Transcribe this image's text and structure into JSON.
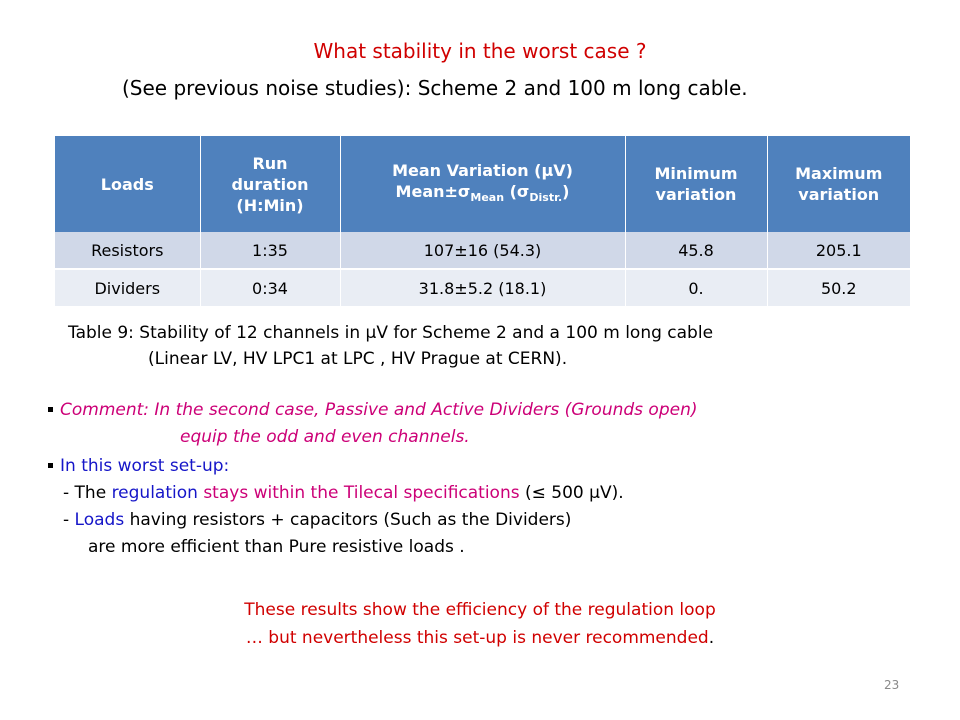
{
  "title": {
    "line1": "What stability in the worst case ?",
    "line2": "(See previous noise studies): Scheme 2 and 100 m long cable."
  },
  "table": {
    "headers": {
      "loads": "Loads",
      "run_duration_1": "Run",
      "run_duration_2": "duration",
      "run_duration_3": "(H:Min)",
      "mean_variation_1": "Mean Variation (µV)",
      "mean_variation_2a": "Mean±σ",
      "mean_variation_2b": "Mean",
      "mean_variation_2c": " (σ",
      "mean_variation_2d": "Distr.",
      "mean_variation_2e": ")",
      "minimum_1": "Minimum",
      "minimum_2": "variation",
      "maximum_1": "Maximum",
      "maximum_2": "variation"
    },
    "rows": [
      {
        "loads": "Resistors",
        "duration": "1:35",
        "mean": "107±16  (54.3)",
        "min": "45.8",
        "max": "205.1"
      },
      {
        "loads": "Dividers",
        "duration": "0:34",
        "mean": "31.8±5.2  (18.1)",
        "min": "0.",
        "max": "50.2"
      }
    ]
  },
  "caption": {
    "line1": "Table 9: Stability of 12 channels in µV for Scheme 2 and a 100 m long cable",
    "line2": "(Linear LV, HV LPC1 at LPC , HV Prague at CERN)."
  },
  "comment": {
    "line1": "Comment: In the second case, Passive and Active Dividers (Grounds open)",
    "line2": "equip the odd and even channels."
  },
  "worst_setup": {
    "intro": "In this worst set-up:",
    "item1_prefix": "- The ",
    "item1_regulation": "regulation",
    "item1_space": " ",
    "item1_stays": "stays within the Tilecal specifications",
    "item1_suffix": " (≤ 500 µV).",
    "item2_prefix": "- ",
    "item2_loads": "Loads",
    "item2_rest": " having resistors + capacitors (Such as the Dividers)",
    "item2_line2": "are more efficient than Pure resistive loads ."
  },
  "conclusion": {
    "line1": "These results show the efficiency of the regulation loop",
    "line2": "… but nevertheless this set-up is never recommended",
    "line2_period": "."
  },
  "slide_number": "23",
  "colors": {
    "red": "#d00000",
    "blue": "#1515c8",
    "magenta": "#cc0077",
    "table_header": "#4f81bd",
    "table_row1": "#d0d8e8",
    "table_row2": "#e9edf4"
  }
}
